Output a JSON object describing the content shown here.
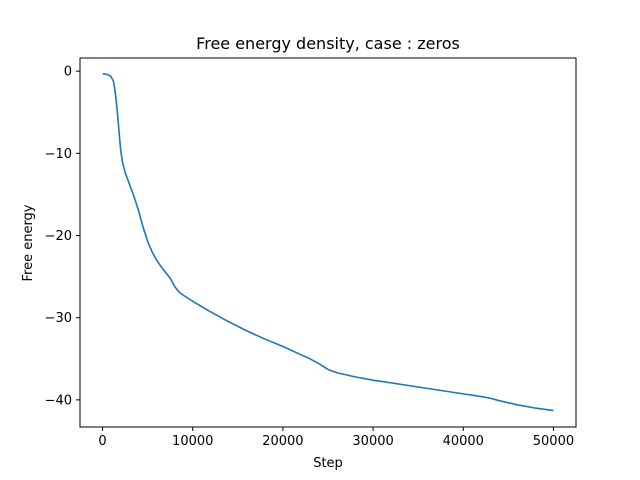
{
  "chart_data": {
    "type": "line",
    "title": "Free energy density, case : zeros",
    "xlabel": "Step",
    "ylabel": "Free energy",
    "xlim": [
      -2500,
      52500
    ],
    "ylim": [
      -43.3,
      1.6
    ],
    "xticks": [
      0,
      10000,
      20000,
      30000,
      40000,
      50000
    ],
    "xtick_labels": [
      "0",
      "10000",
      "20000",
      "30000",
      "40000",
      "50000"
    ],
    "yticks": [
      0,
      -10,
      -20,
      -30,
      -40
    ],
    "ytick_labels": [
      "0",
      "−10",
      "−20",
      "−30",
      "−40"
    ],
    "grid": false,
    "series": [
      {
        "color": "#1f77b4",
        "x": [
          0,
          500,
          900,
          1200,
          1400,
          1600,
          1800,
          2000,
          2200,
          2500,
          3000,
          3500,
          4000,
          4500,
          5000,
          5500,
          6000,
          6500,
          7000,
          7500,
          8000,
          8500,
          9000,
          10000,
          12000,
          14000,
          16000,
          18000,
          20000,
          22000,
          23000,
          24000,
          25000,
          26000,
          28000,
          30000,
          33000,
          36000,
          39000,
          42000,
          43000,
          44000,
          46000,
          48000,
          50000
        ],
        "y": [
          -0.3,
          -0.4,
          -0.6,
          -1.2,
          -2.5,
          -4.5,
          -7.0,
          -9.5,
          -11.0,
          -12.3,
          -13.8,
          -15.3,
          -17.0,
          -19.0,
          -20.7,
          -22.0,
          -23.0,
          -23.8,
          -24.5,
          -25.2,
          -26.2,
          -26.9,
          -27.3,
          -28.0,
          -29.3,
          -30.5,
          -31.6,
          -32.6,
          -33.5,
          -34.5,
          -35.0,
          -35.6,
          -36.3,
          -36.7,
          -37.2,
          -37.6,
          -38.1,
          -38.6,
          -39.1,
          -39.6,
          -39.8,
          -40.1,
          -40.6,
          -41.0,
          -41.3
        ]
      }
    ]
  }
}
